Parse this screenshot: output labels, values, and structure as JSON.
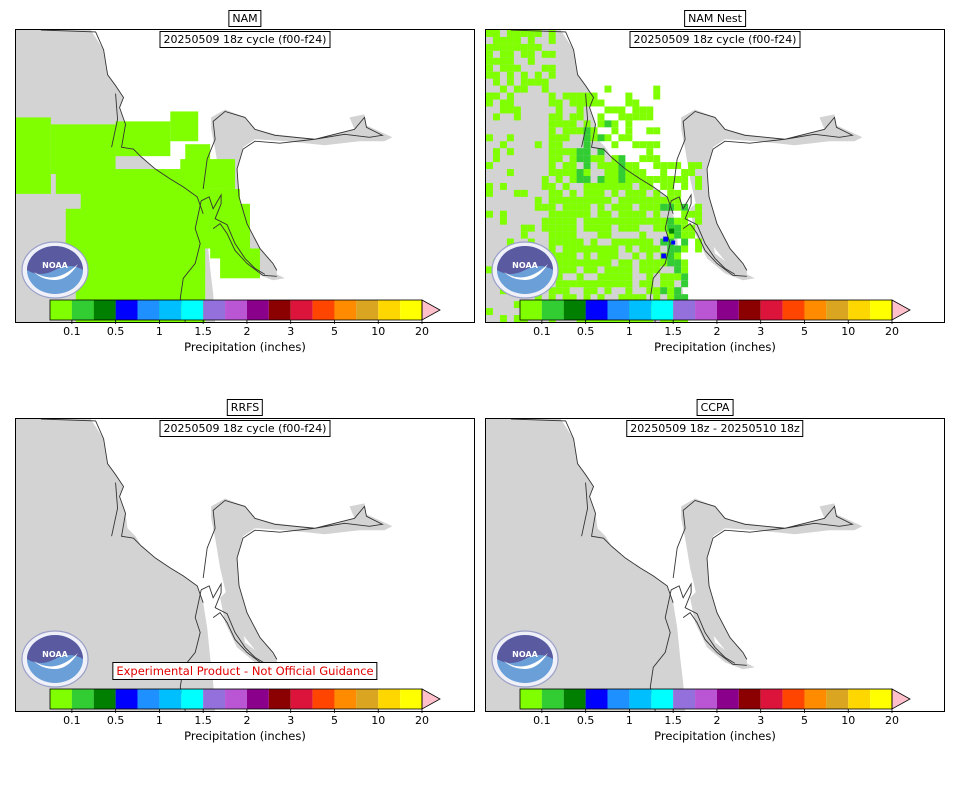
{
  "colors": {
    "land": "#d3d3d3",
    "coastline": "#333333",
    "precip_low": "#7fff00",
    "precip_mid": "#32cd32",
    "precip_dark": "#008000",
    "precip_blue": "#0000ff",
    "disclaimer": "#e00000"
  },
  "colorbar": {
    "colors": [
      "#7fff00",
      "#32cd32",
      "#007f00",
      "#0000ff",
      "#1e90ff",
      "#00bfff",
      "#00ffff",
      "#9370db",
      "#ba55d3",
      "#8b008b",
      "#8b0000",
      "#dc143c",
      "#ff4500",
      "#ff8c00",
      "#daa520",
      "#ffd700",
      "#ffff00"
    ],
    "extend_color": "#ffc0cb",
    "ticks": [
      {
        "label": "0.1",
        "index": 1
      },
      {
        "label": "0.5",
        "index": 3
      },
      {
        "label": "1",
        "index": 5
      },
      {
        "label": "1.5",
        "index": 7
      },
      {
        "label": "2",
        "index": 9
      },
      {
        "label": "3",
        "index": 11
      },
      {
        "label": "5",
        "index": 13
      },
      {
        "label": "10",
        "index": 15
      },
      {
        "label": "20",
        "index": 17
      }
    ],
    "label": "Precipitation (inches)"
  },
  "panels": [
    {
      "model": "NAM",
      "cycle": "20250509 18z cycle (f00-f24)",
      "disclaimer": "",
      "precip": "nam"
    },
    {
      "model": "NAM Nest",
      "cycle": "20250509 18z cycle (f00-f24)",
      "disclaimer": "",
      "precip": "namnest"
    },
    {
      "model": "RRFS",
      "cycle": "20250509 18z cycle (f00-f24)",
      "disclaimer": "Experimental Product - Not Official Guidance",
      "precip": "none"
    },
    {
      "model": "CCPA",
      "cycle": "20250509 18z - 20250510 18z",
      "disclaimer": "",
      "precip": "none"
    }
  ],
  "logo": {
    "name": "noaa-logo",
    "text": "NOAA"
  }
}
